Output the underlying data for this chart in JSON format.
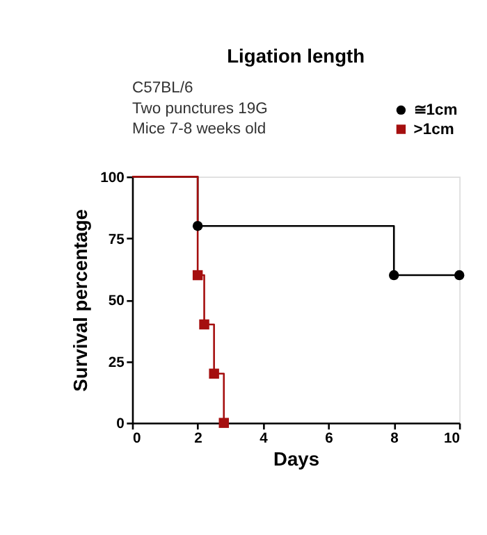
{
  "chart_data": {
    "type": "step",
    "title": "Ligation length",
    "xlabel": "Days",
    "ylabel": "Survival percentage",
    "annotations": [
      "C57BL/6",
      "Two punctures 19G",
      "Mice 7-8 weeks old"
    ],
    "series": [
      {
        "name": "≅1cm",
        "color": "#000000",
        "marker": "circle",
        "x": [
          0,
          2,
          8,
          10
        ],
        "values": [
          100,
          80,
          60,
          60
        ]
      },
      {
        "name": ">1cm",
        "color": "#a50f0f",
        "marker": "square",
        "x": [
          0,
          2,
          2.2,
          2.5,
          2.8
        ],
        "values": [
          100,
          60,
          40,
          20,
          0
        ]
      }
    ],
    "xlim": [
      0,
      10
    ],
    "xticks": [
      0,
      2,
      4,
      6,
      8,
      10
    ],
    "ylim": [
      0,
      100
    ],
    "yticks": [
      0,
      25,
      50,
      75,
      100
    ],
    "grid": false,
    "legend": "top right",
    "line_style": "solid"
  }
}
